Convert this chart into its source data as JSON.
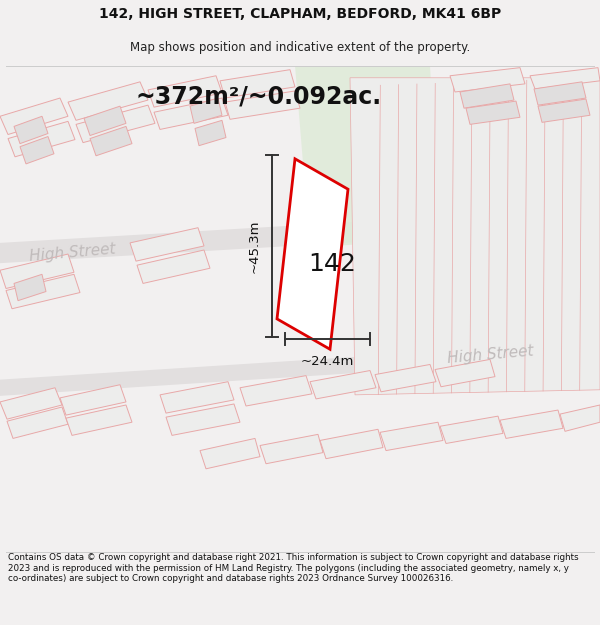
{
  "title_line1": "142, HIGH STREET, CLAPHAM, BEDFORD, MK41 6BP",
  "title_line2": "Map shows position and indicative extent of the property.",
  "area_text": "~372m²/~0.092ac.",
  "label_142": "142",
  "dim_width": "~24.4m",
  "dim_height": "~45.3m",
  "street_label1": "High Street",
  "street_label2": "High Street",
  "street_label3": "High Street",
  "footer_text": "Contains OS data © Crown copyright and database right 2021. This information is subject to Crown copyright and database rights 2023 and is reproduced with the permission of HM Land Registry. The polygons (including the associated geometry, namely x, y co-ordinates) are subject to Crown copyright and database rights 2023 Ordnance Survey 100026316.",
  "bg_color": "#f2f0f0",
  "map_bg_color": "#f7f5f5",
  "road_fill": "#e2dfdf",
  "building_outline_color": "#e8a8a8",
  "building_fill": "#ededec",
  "building_fill_dark": "#e0dede",
  "highlight_fill": "#ffffff",
  "highlight_outline": "#dd0000",
  "dim_line_color": "#333333",
  "street_text_color": "#c0bbbb",
  "green_patch_color": "#deebd8",
  "title_fontsize": 10,
  "subtitle_fontsize": 8.5,
  "area_fontsize": 17,
  "label_fontsize": 18,
  "dim_fontsize": 9.5,
  "street_fontsize": 11,
  "footer_fontsize": 6.3
}
